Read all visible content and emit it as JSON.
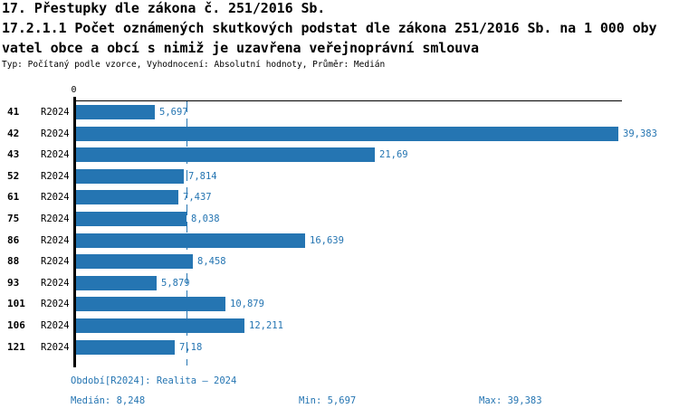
{
  "header": {
    "title_line1": "17. Přestupky dle zákona č. 251/2016 Sb.",
    "title_line2": "17.2.1.1 Počet oznámených skutkových podstat dle zákona 251/2016 Sb. na 1 000 oby",
    "title_line3": "vatel obce a obcí s nimiž je uzavřena veřejnoprávní smlouva",
    "meta_line": "Typ: Počítaný podle vzorce, Vyhodnocení: Absolutní hodnoty, Průměr: Medián"
  },
  "chart_data": {
    "type": "bar",
    "orientation": "horizontal",
    "title": "17.2.1.1 Počet oznámených skutkových podstat dle zákona 251/2016 Sb. na 1 000 obyvatel obce a obcí s nimiž je uzavřena veřejnoprávní smlouva",
    "categories": [
      "41",
      "42",
      "43",
      "52",
      "61",
      "75",
      "86",
      "88",
      "93",
      "101",
      "106",
      "121"
    ],
    "series": [
      {
        "name": "R2024",
        "values": [
          5.697,
          39.383,
          21.69,
          7.814,
          7.437,
          8.038,
          16.639,
          8.458,
          5.879,
          10.879,
          12.211,
          7.18
        ],
        "value_labels": [
          "5,697",
          "39,383",
          "21,69",
          "7,814",
          "7,437",
          "8,038",
          "16,639",
          "8,458",
          "5,879",
          "10,879",
          "12,211",
          "7,18"
        ]
      }
    ],
    "xlim": [
      0,
      39.383
    ],
    "x_zero_tick_label": "0",
    "median": 8.248,
    "median_line_shown": true,
    "grid": false,
    "legend_position": "none"
  },
  "footer": {
    "period_line": "Období[R2024]: Realita – 2024",
    "median_label": "Medián: 8,248",
    "min_label": "Min: 5,697",
    "max_label": "Max: 39,383"
  },
  "colors": {
    "accent_blue": "#2575b2",
    "text_black": "#000000",
    "background": "#ffffff"
  }
}
